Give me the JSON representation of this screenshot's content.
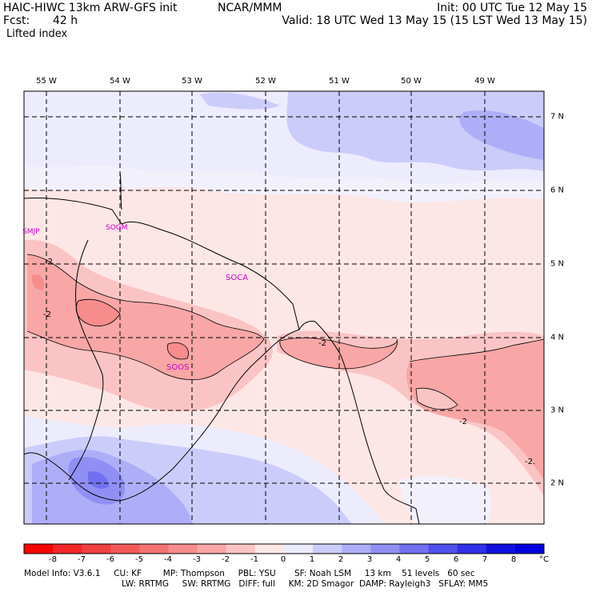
{
  "header": {
    "title": "HAIC-HIWC 13km ARW-GFS init",
    "org": "NCAR/MMM",
    "init": "Init: 00 UTC Tue 12 May 15",
    "fcst_label": "Fcst:",
    "fcst_value": "42 h",
    "valid": "Valid: 18 UTC Wed 13 May 15 (15 LST Wed 13 May 15)",
    "field": "Lifted index"
  },
  "map": {
    "lon_labels": [
      "55 W",
      "54 W",
      "53 W",
      "52 W",
      "51 W",
      "50 W",
      "49 W"
    ],
    "lat_labels": [
      "7 N",
      "6 N",
      "5 N",
      "4 N",
      "3 N",
      "2 N"
    ],
    "stations": [
      "SMJP",
      "SOGM",
      "SOCA",
      "SOOS"
    ],
    "contour_labels": [
      "-2",
      "-2",
      "-2",
      "-2",
      "-2."
    ],
    "colors": {
      "background": "#fde6e6",
      "border": "#000000",
      "grid": "#000000",
      "station": "#cc00cc"
    }
  },
  "colorbar": {
    "labels": [
      "-8",
      "-7",
      "-6",
      "-5",
      "-4",
      "-3",
      "-2",
      "-1",
      "0",
      "1",
      "2",
      "3",
      "4",
      "5",
      "6",
      "7",
      "8"
    ],
    "unit": "°C",
    "colors": [
      "#ff0000",
      "#f42626",
      "#f04040",
      "#f25858",
      "#f47272",
      "#f68c8c",
      "#f8a6a6",
      "#fac4c4",
      "#fde6e6",
      "#ececfc",
      "#ccccfa",
      "#aeaef8",
      "#9090f4",
      "#7070f0",
      "#5050ec",
      "#3030e8",
      "#1010e0",
      "#0000dd"
    ]
  },
  "model_info": {
    "line1": "Model Info: V3.6.1     CU: KF        MP: Thompson     PBL: YSU       SF: Noah LSM     13 km    51 levels   60 sec",
    "line2": "LW: RRTMG     SW: RRTMG   DIFF: full     KM: 2D Smagor  DAMP: Rayleigh3   SFLAY: MM5"
  }
}
